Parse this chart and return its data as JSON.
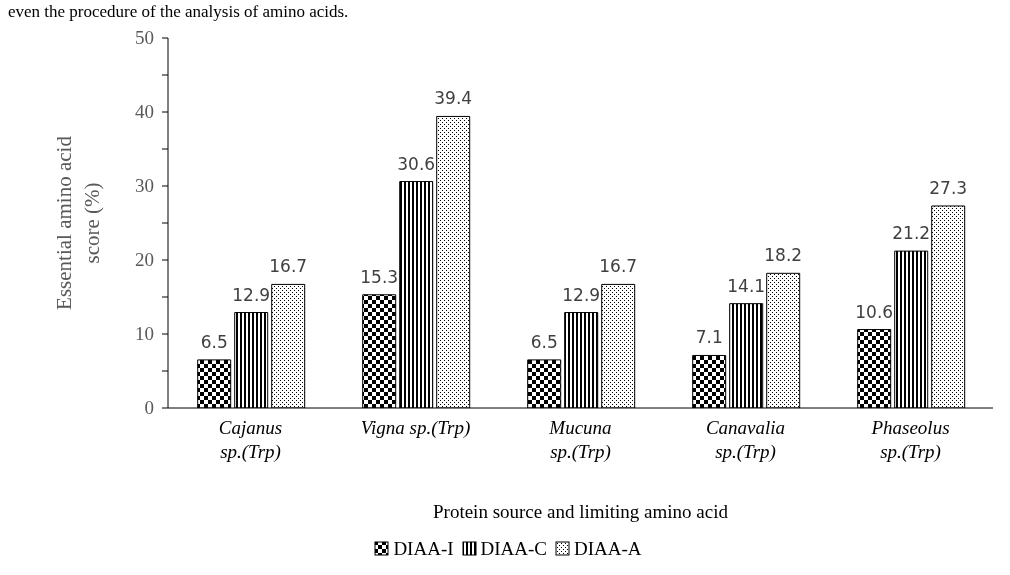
{
  "chart_data": {
    "type": "bar",
    "xlabel": "Protein source and limiting amino acid",
    "ylabel": "Essential amino acid score (%)",
    "annotations": [
      "even the procedure of the analysis of amino acids."
    ],
    "categories": [
      "Cajanus sp.(Trp)",
      "Vigna sp.(Trp)",
      "Mucuna sp.(Trp)",
      "Canavalia sp.(Trp)",
      "Phaseolus sp.(Trp)"
    ],
    "series": [
      {
        "name": "DIAA-I",
        "color": "#000000",
        "values": [
          6.5,
          15.3,
          6.5,
          7.1,
          10.6
        ]
      },
      {
        "name": "DIAA-C",
        "color": "#000000",
        "values": [
          12.9,
          30.6,
          12.9,
          14.1,
          21.2
        ]
      },
      {
        "name": "DIAA-A",
        "color": "#000000",
        "values": [
          16.7,
          39.4,
          16.7,
          18.2,
          27.3
        ]
      }
    ],
    "ylim": [
      0,
      50
    ],
    "yticks": [
      0,
      {
        "value": 5,
        "label": null
      },
      10,
      {
        "value": 15,
        "label": null
      },
      20,
      {
        "value": 25,
        "label": null
      },
      30,
      {
        "value": 35,
        "label": null
      },
      40,
      {
        "value": 45,
        "label": null
      },
      50
    ],
    "data_labels": true,
    "legend": "bottom",
    "grid": false
  }
}
